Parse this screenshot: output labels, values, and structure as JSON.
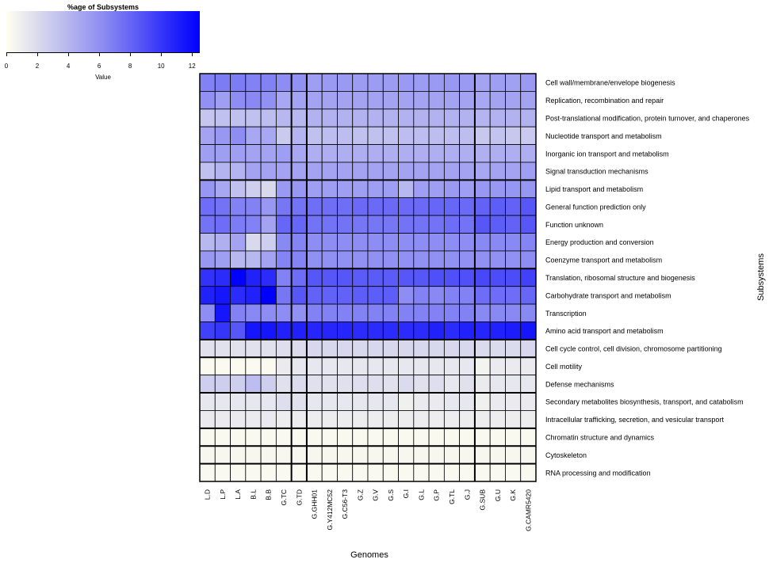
{
  "legend": {
    "title": "%age of Subsystems",
    "label": "Value",
    "ticks": [
      "0",
      "2",
      "4",
      "6",
      "8",
      "10",
      "12"
    ]
  },
  "colors": {
    "low": "#fffff0",
    "mid": "#d9d9ee",
    "high": "#0000ff",
    "border": "#000000"
  },
  "chart_data": {
    "type": "heatmap",
    "title": "",
    "xlabel": "Genomes",
    "ylabel": "Subsystems",
    "value_range": [
      0,
      12.5
    ],
    "columns": [
      "L.D",
      "L.P",
      "L.A",
      "B.L",
      "B.B",
      "G.TC",
      "G.TD",
      "G.GHH01",
      "G.Y412MC52",
      "G.C56-T3",
      "G.Z",
      "G.V",
      "G.S",
      "G.I",
      "G.L",
      "G.P",
      "G.TL",
      "G.J",
      "G.SUB",
      "G.U",
      "G.K",
      "G.CAMR5420"
    ],
    "column_groups": [
      [
        0,
        1,
        2,
        3,
        4,
        5
      ],
      [
        6
      ],
      [
        7,
        8,
        9,
        10,
        11,
        12,
        13,
        14,
        15,
        16,
        17
      ],
      [
        18,
        19,
        20,
        21
      ]
    ],
    "rows": [
      "Cell wall/membrane/envelope biogenesis",
      "Replication, recombination and repair",
      "Post-translational modification, protein turnover, and chaperones",
      "Nucleotide transport and metabolism",
      "Inorganic ion transport and metabolism",
      "Signal transduction mechanisms",
      "Lipid transport and metabolism",
      "General function prediction only",
      "Function unknown",
      "Energy production and conversion",
      "Coenzyme transport and metabolism",
      "Translation, ribosomal structure and biogenesis",
      "Carbohydrate transport and metabolism",
      "Transcription",
      "Amino acid transport and metabolism",
      "Cell cycle control, cell division, chromosome partitioning",
      "Cell motility",
      "Defense mechanisms",
      "Secondary metabolites biosynthesis, transport, and catabolism",
      "Intracellular trafficking, secretion, and vesicular transport",
      "Chromatin structure and dynamics",
      "Cytoskeleton",
      "RNA processing and modification"
    ],
    "row_groups": [
      [
        0,
        1,
        2,
        3,
        4,
        5
      ],
      [
        6,
        7,
        8,
        9,
        10
      ],
      [
        11,
        12,
        13,
        14
      ],
      [
        15
      ],
      [
        16,
        17
      ],
      [
        18,
        19
      ],
      [
        20
      ],
      [
        21
      ],
      [
        22
      ]
    ],
    "values": [
      [
        6.5,
        6.8,
        6.8,
        6.5,
        6.5,
        6.0,
        5.8,
        5.2,
        5.4,
        5.4,
        5.3,
        5.3,
        5.3,
        5.4,
        5.3,
        5.4,
        5.5,
        5.4,
        5.0,
        5.2,
        5.1,
        5.4
      ],
      [
        5.8,
        5.2,
        6.0,
        6.2,
        5.8,
        4.8,
        5.0,
        5.0,
        5.0,
        5.0,
        5.0,
        5.0,
        5.0,
        5.0,
        5.0,
        5.0,
        5.0,
        5.0,
        4.8,
        5.0,
        5.0,
        5.0
      ],
      [
        3.4,
        3.6,
        3.6,
        3.6,
        3.8,
        4.0,
        4.0,
        4.3,
        4.3,
        4.3,
        4.3,
        4.3,
        4.3,
        4.3,
        4.3,
        4.3,
        4.3,
        4.3,
        4.2,
        4.3,
        4.3,
        4.3
      ],
      [
        5.0,
        5.5,
        6.0,
        4.8,
        4.8,
        3.2,
        4.2,
        3.6,
        3.8,
        3.8,
        3.6,
        3.6,
        3.6,
        3.8,
        3.8,
        3.8,
        3.8,
        3.8,
        3.3,
        3.5,
        3.3,
        3.2
      ],
      [
        5.2,
        5.2,
        5.2,
        5.0,
        5.0,
        5.2,
        4.8,
        4.5,
        4.5,
        4.5,
        4.5,
        4.5,
        4.5,
        4.5,
        4.5,
        4.5,
        4.5,
        4.5,
        4.4,
        4.5,
        4.5,
        4.5
      ],
      [
        3.6,
        4.2,
        4.2,
        5.0,
        5.0,
        5.0,
        5.0,
        5.0,
        5.0,
        5.0,
        5.0,
        5.0,
        5.0,
        5.0,
        5.0,
        5.0,
        5.0,
        5.0,
        4.8,
        5.0,
        5.0,
        5.2
      ],
      [
        5.6,
        4.8,
        3.6,
        3.0,
        2.5,
        5.4,
        5.5,
        5.2,
        5.2,
        5.2,
        5.2,
        5.2,
        5.2,
        4.0,
        5.2,
        5.2,
        5.4,
        5.2,
        5.5,
        5.5,
        5.6,
        5.6
      ],
      [
        7.5,
        7.2,
        6.5,
        6.5,
        5.5,
        7.0,
        7.2,
        7.4,
        7.4,
        7.4,
        7.6,
        7.6,
        7.6,
        7.6,
        7.6,
        7.8,
        7.8,
        7.6,
        8.0,
        8.2,
        8.0,
        8.5
      ],
      [
        7.2,
        7.5,
        6.8,
        6.5,
        5.0,
        7.8,
        7.8,
        7.2,
        7.2,
        7.2,
        7.0,
        7.0,
        7.0,
        7.2,
        7.2,
        7.2,
        7.5,
        7.2,
        8.5,
        8.2,
        8.0,
        8.5
      ],
      [
        4.0,
        4.4,
        5.0,
        2.5,
        3.0,
        6.2,
        6.4,
        6.0,
        6.0,
        6.0,
        6.0,
        6.0,
        6.0,
        6.0,
        6.0,
        6.0,
        6.0,
        6.0,
        6.2,
        6.2,
        6.2,
        6.4
      ],
      [
        5.5,
        5.2,
        4.0,
        4.0,
        5.0,
        6.4,
        6.4,
        5.8,
        5.8,
        5.8,
        5.8,
        5.8,
        5.8,
        5.8,
        5.8,
        5.8,
        5.8,
        5.8,
        5.8,
        5.8,
        5.8,
        6.0
      ],
      [
        10.2,
        10.5,
        12.5,
        11.0,
        10.5,
        6.5,
        7.5,
        8.5,
        8.5,
        8.5,
        8.3,
        8.3,
        8.3,
        8.5,
        8.5,
        8.8,
        8.8,
        8.8,
        9.2,
        9.0,
        9.0,
        9.5
      ],
      [
        11.0,
        11.5,
        10.5,
        11.0,
        12.5,
        7.0,
        8.5,
        8.0,
        8.0,
        8.0,
        8.2,
        8.2,
        8.2,
        6.0,
        6.5,
        6.2,
        6.5,
        6.5,
        7.5,
        7.5,
        7.5,
        7.8
      ],
      [
        6.0,
        11.5,
        6.5,
        6.2,
        6.0,
        6.0,
        5.8,
        6.5,
        6.5,
        6.5,
        6.5,
        6.5,
        6.5,
        6.5,
        6.5,
        6.5,
        6.5,
        6.5,
        6.2,
        6.2,
        6.2,
        6.2
      ],
      [
        9.5,
        10.0,
        8.5,
        11.5,
        11.5,
        11.0,
        11.0,
        10.8,
        10.8,
        10.8,
        10.5,
        10.5,
        10.5,
        10.5,
        10.5,
        11.0,
        10.5,
        11.0,
        10.8,
        11.0,
        11.2,
        11.5
      ],
      [
        2.0,
        2.0,
        2.0,
        2.0,
        2.0,
        2.2,
        2.4,
        2.6,
        2.6,
        2.6,
        2.6,
        2.6,
        2.6,
        2.6,
        2.6,
        2.6,
        2.6,
        2.6,
        2.4,
        2.4,
        2.4,
        2.6
      ],
      [
        0.3,
        0.3,
        0.3,
        0.3,
        0.3,
        1.4,
        1.6,
        1.6,
        1.6,
        1.6,
        1.6,
        1.6,
        1.6,
        1.6,
        1.6,
        1.6,
        1.6,
        1.6,
        0.8,
        1.4,
        1.4,
        1.4
      ],
      [
        3.0,
        3.0,
        3.0,
        3.8,
        3.0,
        2.0,
        2.4,
        2.0,
        2.0,
        2.0,
        2.2,
        2.2,
        2.0,
        2.4,
        2.0,
        2.2,
        1.6,
        2.0,
        1.4,
        1.6,
        1.6,
        1.6
      ],
      [
        1.6,
        1.6,
        1.6,
        1.6,
        1.6,
        2.2,
        2.0,
        1.6,
        1.6,
        1.6,
        1.6,
        1.6,
        1.6,
        1.0,
        1.4,
        1.4,
        1.6,
        1.6,
        1.0,
        1.4,
        1.4,
        1.4
      ],
      [
        1.4,
        1.4,
        1.4,
        1.4,
        1.4,
        1.2,
        1.2,
        1.2,
        1.2,
        1.2,
        1.2,
        1.2,
        1.2,
        1.2,
        1.2,
        1.2,
        1.2,
        1.2,
        1.2,
        1.2,
        1.2,
        1.2
      ],
      [
        0.4,
        0.4,
        0.4,
        0.4,
        0.4,
        0.4,
        0.4,
        0.4,
        0.4,
        0.4,
        0.4,
        0.4,
        0.4,
        0.4,
        0.4,
        0.4,
        0.4,
        0.4,
        0.4,
        0.4,
        0.4,
        0.4
      ],
      [
        0.5,
        0.5,
        0.5,
        0.5,
        0.5,
        0.5,
        0.5,
        0.5,
        0.5,
        0.5,
        0.5,
        0.5,
        0.5,
        0.5,
        0.5,
        0.5,
        0.5,
        0.5,
        0.5,
        0.5,
        0.5,
        0.5
      ],
      [
        0.4,
        0.4,
        0.4,
        0.4,
        0.4,
        0.4,
        0.4,
        0.4,
        0.4,
        0.4,
        0.4,
        0.4,
        0.4,
        0.4,
        0.4,
        0.4,
        0.4,
        0.4,
        0.4,
        0.4,
        0.4,
        0.4
      ]
    ]
  }
}
